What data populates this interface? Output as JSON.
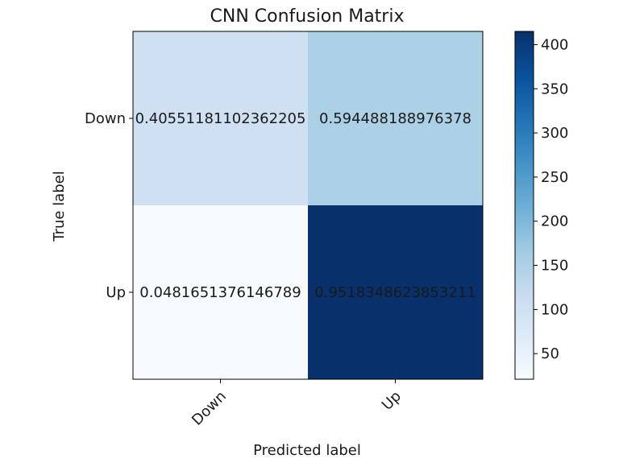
{
  "chart_data": {
    "type": "heatmap",
    "title": "CNN Confusion Matrix",
    "xlabel": "Predicted label",
    "ylabel": "True label",
    "x_categories": [
      "Down",
      "Up"
    ],
    "y_categories": [
      "Down",
      "Up"
    ],
    "cell_labels": [
      [
        "0.40551181102362205",
        "0.594488188976378"
      ],
      [
        "0.0481651376146789",
        "0.9518348623853211"
      ]
    ],
    "counts": [
      [
        103,
        151
      ],
      [
        21,
        415
      ]
    ],
    "colorbar": {
      "colormap": "Blues",
      "range": [
        21,
        415
      ],
      "ticks": [
        "50",
        "100",
        "150",
        "200",
        "250",
        "300",
        "350",
        "400"
      ],
      "tick_values": [
        50,
        100,
        150,
        200,
        250,
        300,
        350,
        400
      ]
    },
    "x_tick_rotation": 45,
    "grid": false
  }
}
